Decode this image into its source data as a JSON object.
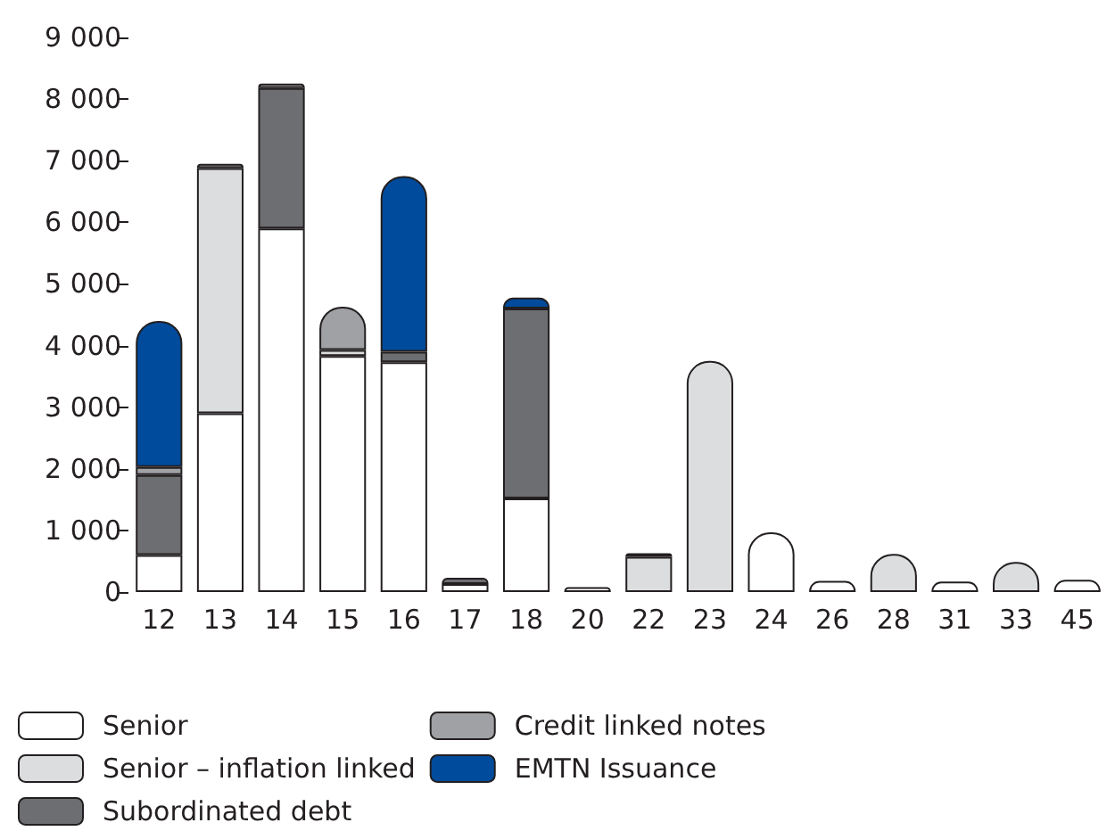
{
  "chart_data": {
    "type": "bar",
    "stacked": true,
    "categories": [
      "12",
      "13",
      "14",
      "15",
      "16",
      "17",
      "18",
      "20",
      "22",
      "23",
      "24",
      "26",
      "28",
      "31",
      "33",
      "45"
    ],
    "series": [
      {
        "name": "Senior",
        "color": "#ffffff",
        "values": [
          600,
          2900,
          5900,
          3830,
          3730,
          130,
          1520,
          80,
          null,
          null,
          970,
          180,
          null,
          170,
          null,
          200
        ]
      },
      {
        "name": "Senior – inflation linked",
        "color": "#dcdddf",
        "values": [
          null,
          3980,
          null,
          100,
          null,
          null,
          null,
          null,
          570,
          3750,
          null,
          null,
          620,
          null,
          490,
          null
        ]
      },
      {
        "name": "Subordinated debt",
        "color": "#6d6e71",
        "values": [
          1300,
          null,
          2280,
          null,
          170,
          100,
          3080,
          null,
          60,
          null,
          null,
          null,
          null,
          null,
          null,
          null
        ]
      },
      {
        "name": "Credit linked notes",
        "color": "#a0a1a4",
        "values": [
          130,
          70,
          70,
          700,
          null,
          null,
          null,
          null,
          null,
          null,
          null,
          null,
          null,
          null,
          null,
          null
        ]
      },
      {
        "name": "EMTN Issuance",
        "color": "#004b9b",
        "values": [
          2370,
          null,
          null,
          null,
          2850,
          null,
          180,
          null,
          null,
          null,
          null,
          null,
          null,
          null,
          null,
          null
        ]
      }
    ],
    "ylim": [
      0,
      9000
    ],
    "yticks": [
      {
        "value": 0,
        "label": "0"
      },
      {
        "value": 1000,
        "label": "1 000"
      },
      {
        "value": 2000,
        "label": "2 000"
      },
      {
        "value": 3000,
        "label": "3 000"
      },
      {
        "value": 4000,
        "label": "4 000"
      },
      {
        "value": 5000,
        "label": "5 000"
      },
      {
        "value": 6000,
        "label": "6 000"
      },
      {
        "value": 7000,
        "label": "7 000"
      },
      {
        "value": 8000,
        "label": "8 000"
      },
      {
        "value": 9000,
        "label": "9 000"
      }
    ],
    "grid": false,
    "legend": "bottom"
  }
}
